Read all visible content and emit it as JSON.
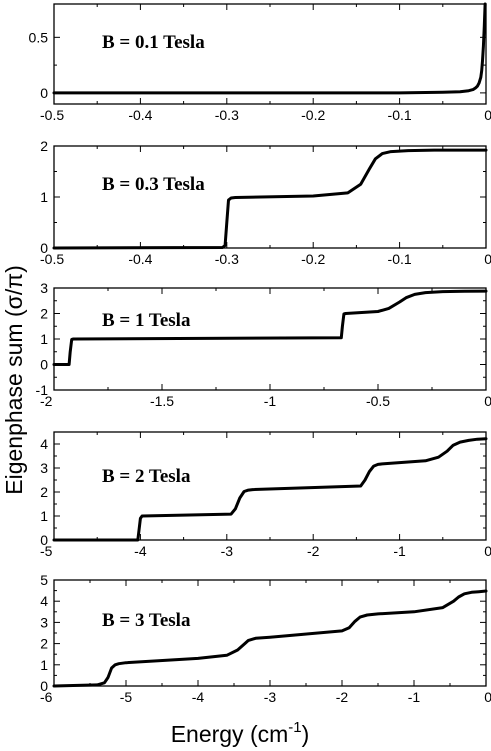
{
  "figure": {
    "ylabel": "Eigenphase sum (σ/π)",
    "xlabel_main": "Energy (cm",
    "xlabel_sup": "-1",
    "xlabel_close": ")"
  },
  "chart_data": [
    {
      "type": "line",
      "title": "B = 0.1 Tesla",
      "xlim": [
        -0.5,
        0
      ],
      "ylim": [
        -0.1,
        0.8
      ],
      "xticks": [
        -0.5,
        -0.4,
        -0.3,
        -0.2,
        -0.1,
        0
      ],
      "xtick_labels": [
        "-0.5",
        "-0.4",
        "-0.3",
        "-0.2",
        "-0.1",
        "0"
      ],
      "yticks": [
        0,
        0.5
      ],
      "ytick_labels": [
        "0",
        "0.5"
      ],
      "series": [
        {
          "x": [
            -0.5,
            -0.1,
            -0.05,
            -0.03,
            -0.02,
            -0.015,
            -0.012,
            -0.01,
            -0.008,
            -0.006,
            -0.005,
            -0.004,
            -0.003,
            -0.002,
            -0.001
          ],
          "y": [
            0.0,
            0.0,
            0.005,
            0.01,
            0.02,
            0.03,
            0.045,
            0.06,
            0.09,
            0.14,
            0.2,
            0.29,
            0.42,
            0.6,
            0.8
          ]
        }
      ]
    },
    {
      "type": "line",
      "title": "B = 0.3 Tesla",
      "xlim": [
        -0.5,
        0
      ],
      "ylim": [
        0,
        2
      ],
      "xticks": [
        -0.5,
        -0.4,
        -0.3,
        -0.2,
        -0.1,
        0
      ],
      "xtick_labels": [
        "-0.5",
        "-0.4",
        "-0.3",
        "-0.2",
        "-0.1",
        "0"
      ],
      "yticks": [
        0,
        1,
        2
      ],
      "ytick_labels": [
        "0",
        "1",
        "2"
      ],
      "series": [
        {
          "x": [
            -0.5,
            -0.305,
            -0.302,
            -0.3,
            -0.298,
            -0.295,
            -0.29,
            -0.2,
            -0.16,
            -0.145,
            -0.135,
            -0.128,
            -0.12,
            -0.11,
            -0.09,
            -0.06,
            0
          ],
          "y": [
            0.0,
            0.01,
            0.05,
            0.5,
            0.94,
            0.98,
            0.99,
            1.02,
            1.08,
            1.25,
            1.55,
            1.75,
            1.85,
            1.89,
            1.91,
            1.92,
            1.92
          ]
        }
      ]
    },
    {
      "type": "line",
      "title": "B = 1 Tesla",
      "xlim": [
        -2,
        0
      ],
      "ylim": [
        -1,
        3
      ],
      "xticks": [
        -2,
        -1.5,
        -1,
        -0.5,
        0
      ],
      "xtick_labels": [
        "-2",
        "-1.5",
        "-1",
        "-0.5",
        "0"
      ],
      "yticks": [
        -1,
        0,
        1,
        2,
        3
      ],
      "ytick_labels": [
        "-1",
        "0",
        "1",
        "2",
        "3"
      ],
      "series": [
        {
          "x": [
            -2,
            -1.93,
            -1.925,
            -1.918,
            -1.91,
            -0.67,
            -0.665,
            -0.658,
            -0.65,
            -0.5,
            -0.45,
            -0.4,
            -0.37,
            -0.33,
            -0.28,
            -0.2,
            -0.1,
            0
          ],
          "y": [
            0.0,
            0.0,
            0.5,
            0.98,
            1.0,
            1.05,
            1.5,
            1.98,
            2.0,
            2.08,
            2.2,
            2.45,
            2.62,
            2.75,
            2.82,
            2.86,
            2.87,
            2.88
          ]
        }
      ]
    },
    {
      "type": "line",
      "title": "B = 2 Tesla",
      "xlim": [
        -5,
        0
      ],
      "ylim": [
        0,
        4.5
      ],
      "xticks": [
        -5,
        -4,
        -3,
        -2,
        -1,
        0
      ],
      "xtick_labels": [
        "-5",
        "-4",
        "-3",
        "-2",
        "-1",
        "0"
      ],
      "yticks": [
        0,
        1,
        2,
        3,
        4
      ],
      "ytick_labels": [
        "0",
        "1",
        "2",
        "3",
        "4"
      ],
      "series": [
        {
          "x": [
            -5,
            -4.03,
            -4.02,
            -4.0,
            -3.98,
            -2.95,
            -2.9,
            -2.85,
            -2.8,
            -2.75,
            -2.7,
            -1.45,
            -1.4,
            -1.35,
            -1.3,
            -1.25,
            -1.2,
            -0.7,
            -0.55,
            -0.45,
            -0.38,
            -0.3,
            -0.2,
            -0.1,
            0
          ],
          "y": [
            0.0,
            0.0,
            0.3,
            0.9,
            1.0,
            1.08,
            1.3,
            1.75,
            2.02,
            2.08,
            2.1,
            2.25,
            2.5,
            2.85,
            3.08,
            3.15,
            3.17,
            3.3,
            3.45,
            3.7,
            3.95,
            4.08,
            4.15,
            4.2,
            4.22
          ]
        }
      ]
    },
    {
      "type": "line",
      "title": "B = 3 Tesla",
      "xlim": [
        -6,
        0
      ],
      "ylim": [
        0,
        5
      ],
      "xticks": [
        -6,
        -5,
        -4,
        -3,
        -2,
        -1,
        0
      ],
      "xtick_labels": [
        "-6",
        "-5",
        "-4",
        "-3",
        "-2",
        "-1",
        "0"
      ],
      "yticks": [
        0,
        1,
        2,
        3,
        4,
        5
      ],
      "ytick_labels": [
        "0",
        "1",
        "2",
        "3",
        "4",
        "5"
      ],
      "series": [
        {
          "x": [
            -6,
            -5.4,
            -5.3,
            -5.25,
            -5.2,
            -5.15,
            -5.1,
            -5.0,
            -4.0,
            -3.6,
            -3.45,
            -3.35,
            -3.3,
            -3.2,
            -3.0,
            -2.0,
            -1.9,
            -1.82,
            -1.75,
            -1.65,
            -1.5,
            -1.0,
            -0.6,
            -0.45,
            -0.38,
            -0.3,
            -0.2,
            -0.1,
            0
          ],
          "y": [
            0.0,
            0.05,
            0.15,
            0.4,
            0.85,
            1.0,
            1.05,
            1.1,
            1.3,
            1.45,
            1.7,
            2.0,
            2.15,
            2.25,
            2.3,
            2.6,
            2.75,
            3.05,
            3.25,
            3.35,
            3.4,
            3.5,
            3.7,
            4.0,
            4.2,
            4.35,
            4.42,
            4.45,
            4.48
          ]
        }
      ]
    }
  ]
}
